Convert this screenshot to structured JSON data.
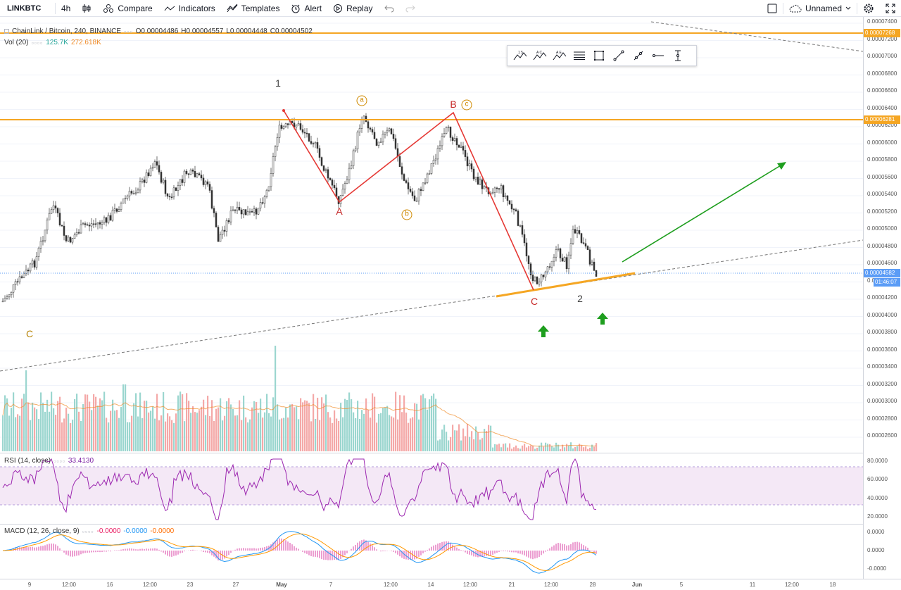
{
  "toolbar": {
    "symbol": "LINKBTC",
    "interval": "4h",
    "compare": "Compare",
    "indicators": "Indicators",
    "templates": "Templates",
    "alert": "Alert",
    "replay": "Replay",
    "layout_name": "Unnamed"
  },
  "legend": {
    "title": "ChainLink / Bitcoin, 240, BINANCE",
    "open": "O0.00004486",
    "high": "H0.00004557",
    "low": "L0.00004448",
    "close": "C0.00004502",
    "vol_label": "Vol (20)",
    "vol_value": "125.7K",
    "vol_ma": "272.618K"
  },
  "rsi": {
    "label": "RSI (14, close)",
    "value": "33.4130"
  },
  "macd": {
    "label": "MACD (12, 26, close, 9)",
    "hist": "-0.0000",
    "macd": "-0.0000",
    "signal": "-0.0000"
  },
  "price_axis": {
    "ticks": [
      "0.00007400",
      "0.00007200",
      "0.00007000",
      "0.00006800",
      "0.00006600",
      "0.00006400",
      "0.00006200",
      "0.00006000",
      "0.00005800",
      "0.00005600",
      "0.00005400",
      "0.00005200",
      "0.00005000",
      "0.00004800",
      "0.00004600",
      "0.00004400",
      "0.00004200",
      "0.00004000",
      "0.00003800",
      "0.00003600",
      "0.00003400",
      "0.00003200",
      "0.00003000",
      "0.00002800",
      "0.00002600"
    ],
    "upper_level": "0.00007268",
    "mid_level": "0.00006281",
    "last_price": "0.00004582",
    "countdown": "01:46:07"
  },
  "rsi_axis": [
    "80.0000",
    "60.0000",
    "40.0000",
    "20.0000"
  ],
  "macd_axis": [
    "0.0000",
    "0.0000",
    "-0.0000"
  ],
  "time_axis": [
    "9",
    "12:00",
    "16",
    "12:00",
    "23",
    "27",
    "May",
    "7",
    "12:00",
    "14",
    "12:00",
    "21",
    "12:00",
    "28",
    "Jun",
    "5",
    "11",
    "12:00",
    "18"
  ],
  "wave_labels": {
    "w1": "1",
    "w2": "2",
    "A": "A",
    "B": "B",
    "C": "C",
    "Cleft": "C",
    "a": "a",
    "b": "b",
    "c": "c"
  },
  "colors": {
    "up": "#26a69a",
    "down": "#ef5350",
    "level": "#f5a623",
    "wave": "#e53935",
    "rsi": "#9c27b0",
    "rsi_band": "#f3e5f5",
    "macd_line": "#2196f3",
    "signal_line": "#ff9800",
    "green_arrow": "#1e9e1e"
  },
  "chart_data": {
    "type": "candlestick",
    "symbol": "ChainLink / Bitcoin",
    "interval": "240",
    "exchange": "BINANCE",
    "price_range": [
      2.5e-05,
      7.5e-05
    ],
    "key_points": [
      {
        "label": "1",
        "price": 6.34e-05
      },
      {
        "label": "A",
        "price": 5.33e-05
      },
      {
        "label": "B",
        "price": 6.34e-05
      },
      {
        "label": "C",
        "price": 4.32e-05
      },
      {
        "label": "2",
        "price": 4.46e-05
      }
    ],
    "horizontal_levels": [
      7.268e-05,
      6.281e-05
    ],
    "last_price": 4.582e-05,
    "rsi_last": 33.413
  }
}
